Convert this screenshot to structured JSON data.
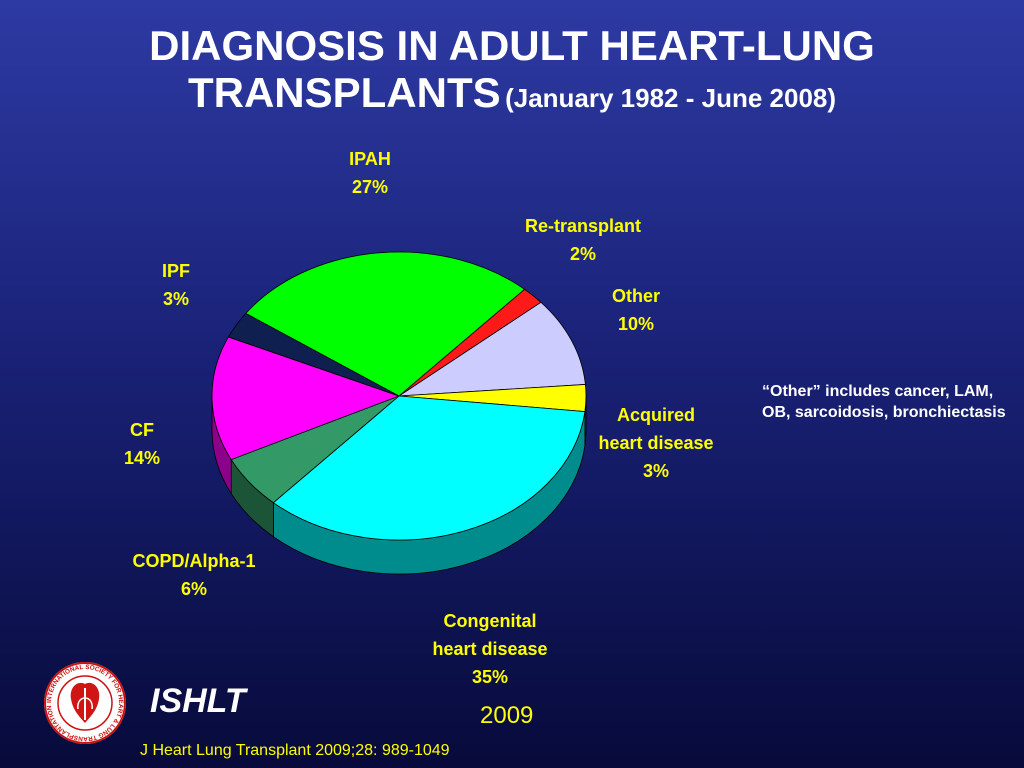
{
  "title": {
    "line1": "DIAGNOSIS IN ADULT HEART-LUNG",
    "line2": "TRANSPLANTS",
    "subtitle": "(January 1982 - June 2008)"
  },
  "chart_data": {
    "type": "pie",
    "style": "3d",
    "slices": [
      {
        "name": "IPAH",
        "label_lines": [
          "IPAH"
        ],
        "value": 27,
        "value_label": "27%",
        "color": "#00ff00"
      },
      {
        "name": "Re-transplant",
        "label_lines": [
          "Re-transplant"
        ],
        "value": 2,
        "value_label": "2%",
        "color": "#ff1a1a"
      },
      {
        "name": "Other",
        "label_lines": [
          "Other"
        ],
        "value": 10,
        "value_label": "10%",
        "color": "#ccccff"
      },
      {
        "name": "Acquired heart disease",
        "label_lines": [
          "Acquired",
          "heart disease"
        ],
        "value": 3,
        "value_label": "3%",
        "color": "#ffff00"
      },
      {
        "name": "Congenital heart disease",
        "label_lines": [
          "Congenital",
          "heart disease"
        ],
        "value": 35,
        "value_label": "35%",
        "color": "#00ffff"
      },
      {
        "name": "COPD/Alpha-1",
        "label_lines": [
          "COPD/Alpha-1"
        ],
        "value": 6,
        "value_label": "6%",
        "color": "#339966"
      },
      {
        "name": "CF",
        "label_lines": [
          "CF"
        ],
        "value": 14,
        "value_label": "14%",
        "color": "#ff00ff"
      },
      {
        "name": "IPF",
        "label_lines": [
          "IPF"
        ],
        "value": 3,
        "value_label": "3%",
        "color": "#0f2050"
      }
    ]
  },
  "note": "“Other” includes cancer, LAM, OB, sarcoidosis, bronchiectasis",
  "footer": {
    "org": "ISHLT",
    "year": "2009",
    "citation": "J Heart Lung Transplant 2009;28: 989-1049",
    "logo_text": "INTERNATIONAL SOCIETY FOR HEART & LUNG TRANSPLANTATION"
  },
  "colors": {
    "label": "#ffff00",
    "title": "#ffffff"
  }
}
